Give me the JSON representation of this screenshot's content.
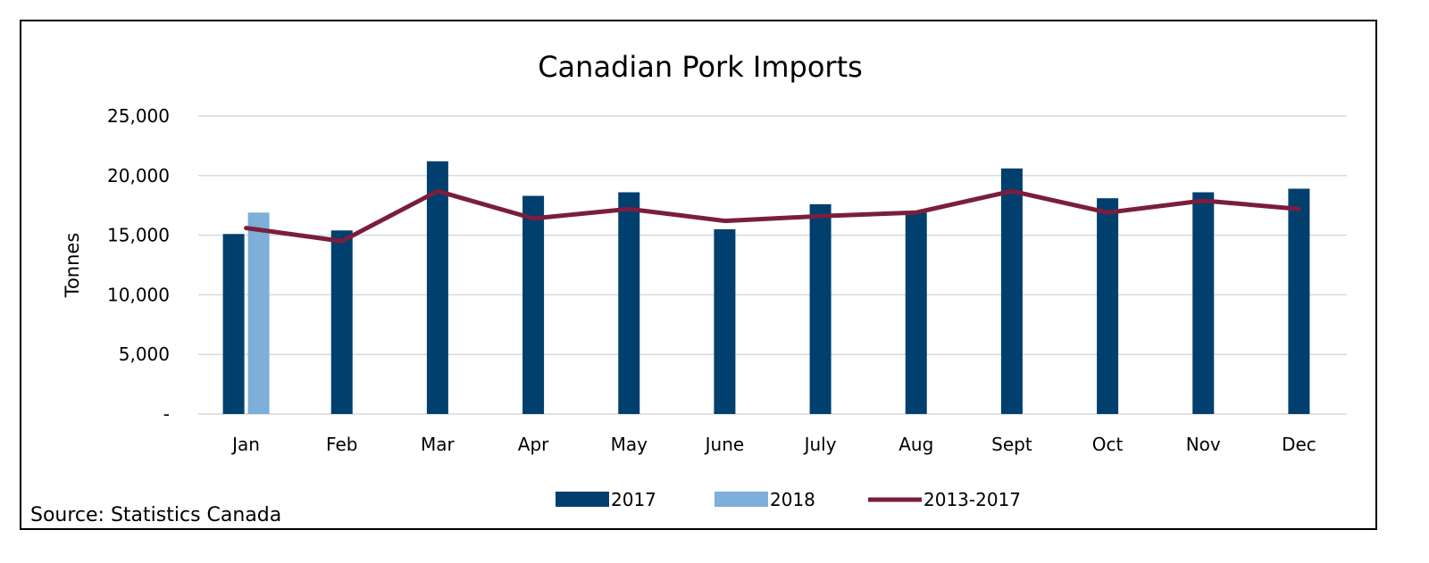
{
  "chart_data": {
    "type": "bar",
    "title": "Canadian Pork Imports",
    "ylabel": "Tonnes",
    "xlabel": "",
    "ylim": [
      0,
      25000
    ],
    "yticks": [
      0,
      5000,
      10000,
      15000,
      20000,
      25000
    ],
    "ytick_labels": [
      "-",
      "5,000",
      "10,000",
      "15,000",
      "20,000",
      "25,000"
    ],
    "categories": [
      "Jan",
      "Feb",
      "Mar",
      "Apr",
      "May",
      "June",
      "July",
      "Aug",
      "Sept",
      "Oct",
      "Nov",
      "Dec"
    ],
    "series": [
      {
        "name": "2017",
        "type": "bar",
        "color": "#003F6E",
        "values": [
          15100,
          15400,
          21200,
          18300,
          18600,
          15500,
          17600,
          16900,
          20600,
          18100,
          18600,
          18900
        ]
      },
      {
        "name": "2018",
        "type": "bar",
        "color": "#7EAEDA",
        "values": [
          16900,
          null,
          null,
          null,
          null,
          null,
          null,
          null,
          null,
          null,
          null,
          null
        ]
      },
      {
        "name": "2013-2017",
        "type": "line",
        "color": "#7A1E3E",
        "values": [
          15600,
          14500,
          18700,
          16400,
          17200,
          16200,
          16600,
          16900,
          18700,
          16900,
          17900,
          17200
        ]
      }
    ],
    "grid": true,
    "legend": "bottom"
  },
  "source_note": "Source: Statistics Canada"
}
